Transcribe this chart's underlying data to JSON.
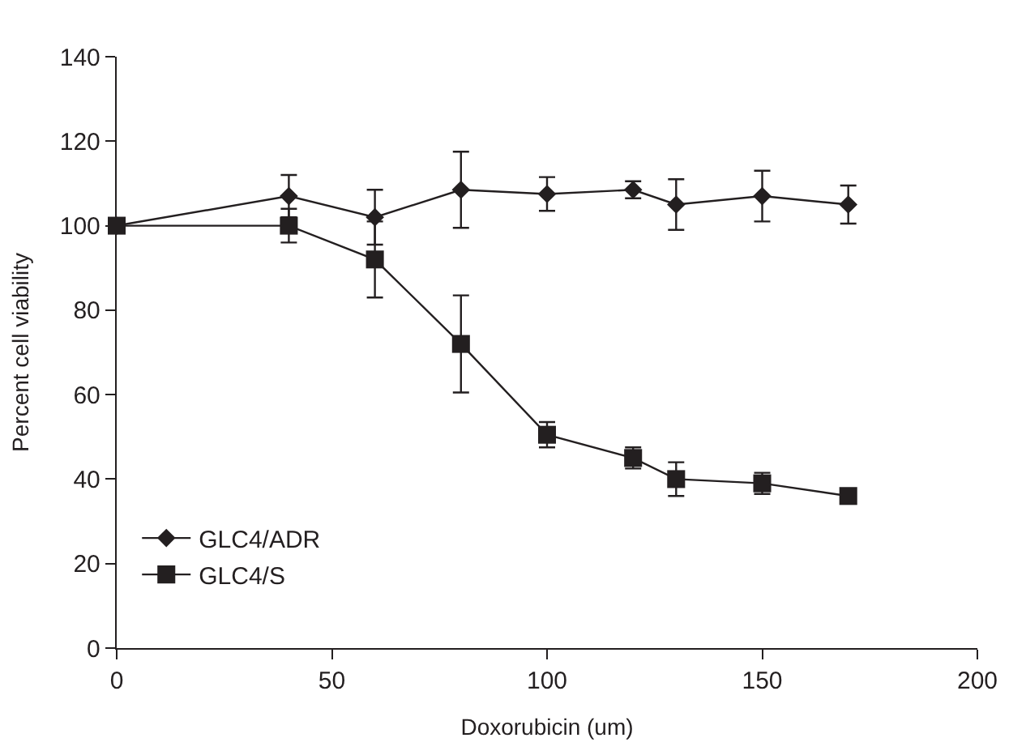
{
  "chart_data": {
    "type": "line",
    "xlabel": "Doxorubicin (um)",
    "ylabel": "Percent cell viability",
    "xlim": [
      0,
      200
    ],
    "xticks": [
      0,
      50,
      100,
      150,
      200
    ],
    "ylim": [
      0,
      140
    ],
    "yticks": [
      0,
      20,
      40,
      60,
      80,
      100,
      120,
      140
    ],
    "grid": false,
    "legend": "bottom left",
    "line_style": "solid",
    "series": [
      {
        "name": "GLC4/ADR",
        "color": "#231f20",
        "marker": "diamond",
        "x": [
          0,
          40,
          60,
          80,
          100,
          120,
          130,
          150,
          170
        ],
        "values": [
          100,
          107,
          102,
          108.5,
          107.5,
          108.5,
          105,
          107,
          105
        ],
        "errors": [
          null,
          5,
          6.5,
          9,
          4,
          2,
          6,
          6,
          4.5
        ]
      },
      {
        "name": "GLC4/S",
        "color": "#231f20",
        "marker": "square",
        "x": [
          0,
          40,
          60,
          80,
          100,
          120,
          130,
          150,
          170
        ],
        "values": [
          100,
          100,
          92,
          72,
          50.5,
          45,
          40,
          39,
          36
        ],
        "errors": [
          null,
          4,
          9,
          11.5,
          3,
          2.5,
          4,
          2.5,
          null
        ]
      }
    ]
  }
}
